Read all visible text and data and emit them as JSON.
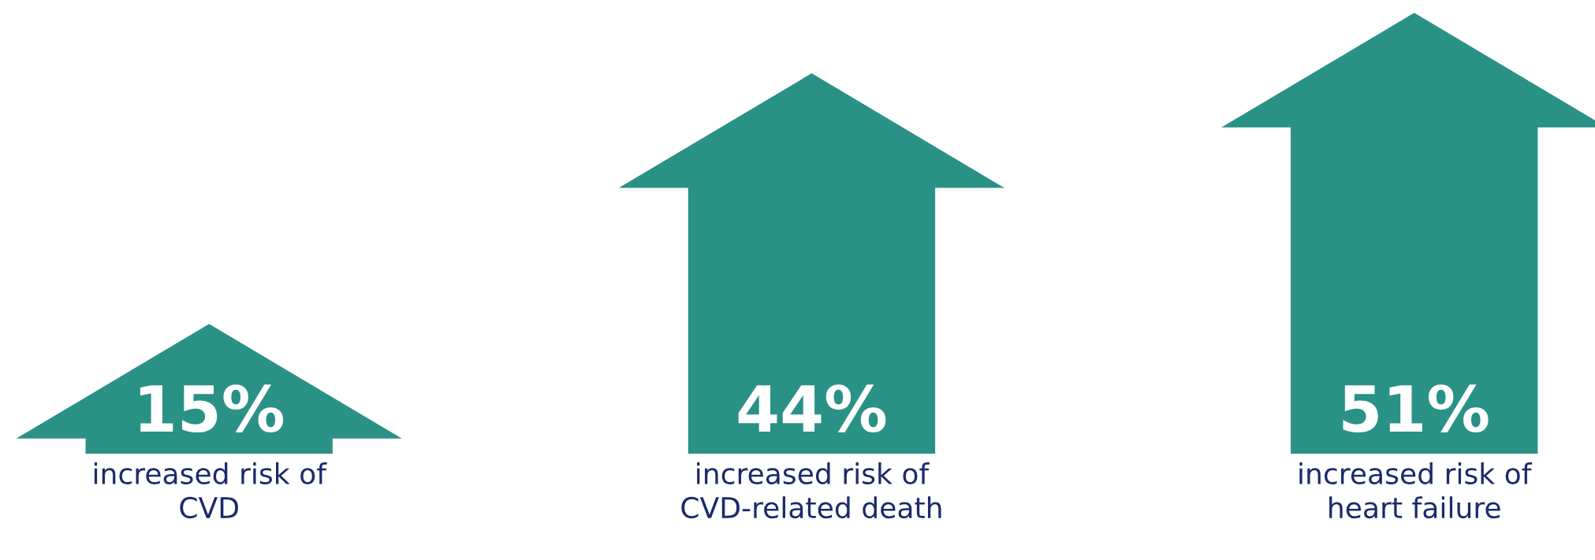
{
  "chart_data": {
    "type": "bar",
    "categories": [
      "increased risk of\nCVD",
      "increased risk of\nCVD-related death",
      "increased risk of\nheart failure"
    ],
    "values": [
      15,
      44,
      51
    ],
    "color": "#2a9187",
    "value_labels": [
      "15%",
      "44%",
      "51%"
    ]
  }
}
